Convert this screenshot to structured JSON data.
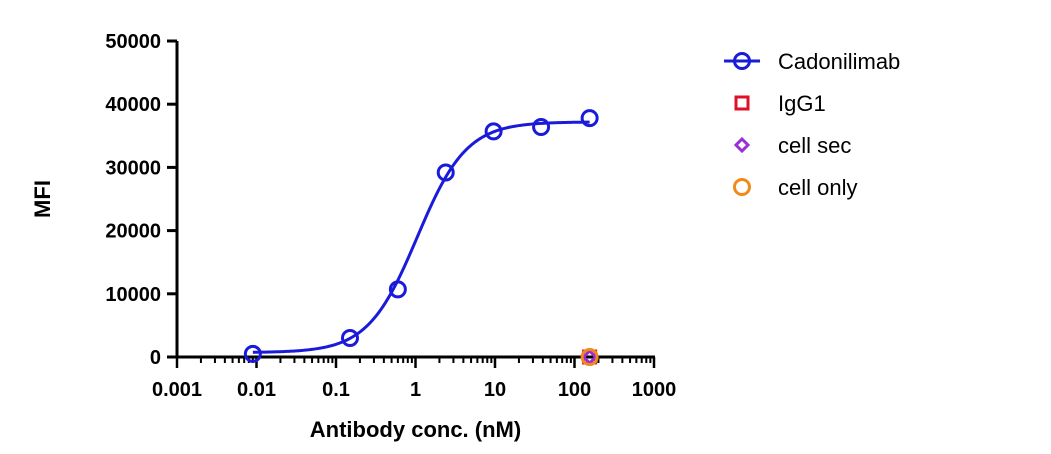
{
  "chart_data": {
    "type": "scatter",
    "title": "",
    "xlabel": "Antibody conc. (nM)",
    "ylabel": "MFI",
    "xscale": "log",
    "xlim": [
      0.001,
      1000
    ],
    "ylim": [
      0,
      50000
    ],
    "x_ticks": [
      "0.001",
      "0.01",
      "0.1",
      "1",
      "10",
      "100",
      "1000"
    ],
    "y_ticks": [
      "0",
      "10000",
      "20000",
      "30000",
      "40000",
      "50000"
    ],
    "grid": false,
    "legend_position": "right",
    "series": [
      {
        "name": "Cadonilimab",
        "color": "#1a1adb",
        "marker": "circle-open",
        "fit_curve": true,
        "points": [
          {
            "x": 0.009,
            "y": 500
          },
          {
            "x": 0.15,
            "y": 3000
          },
          {
            "x": 0.6,
            "y": 10700
          },
          {
            "x": 2.4,
            "y": 29200
          },
          {
            "x": 9.6,
            "y": 35700
          },
          {
            "x": 38,
            "y": 36400
          },
          {
            "x": 155,
            "y": 37800
          }
        ]
      },
      {
        "name": "IgG1",
        "color": "#e0102a",
        "marker": "square-open",
        "fit_curve": false,
        "points": [
          {
            "x": 155,
            "y": 0
          }
        ]
      },
      {
        "name": "cell sec",
        "color": "#9b2fd6",
        "marker": "diamond-open",
        "fit_curve": false,
        "points": [
          {
            "x": 155,
            "y": 0
          }
        ]
      },
      {
        "name": "cell only",
        "color": "#f08a1c",
        "marker": "circle-open",
        "fit_curve": false,
        "points": [
          {
            "x": 155,
            "y": 0
          }
        ]
      }
    ]
  }
}
